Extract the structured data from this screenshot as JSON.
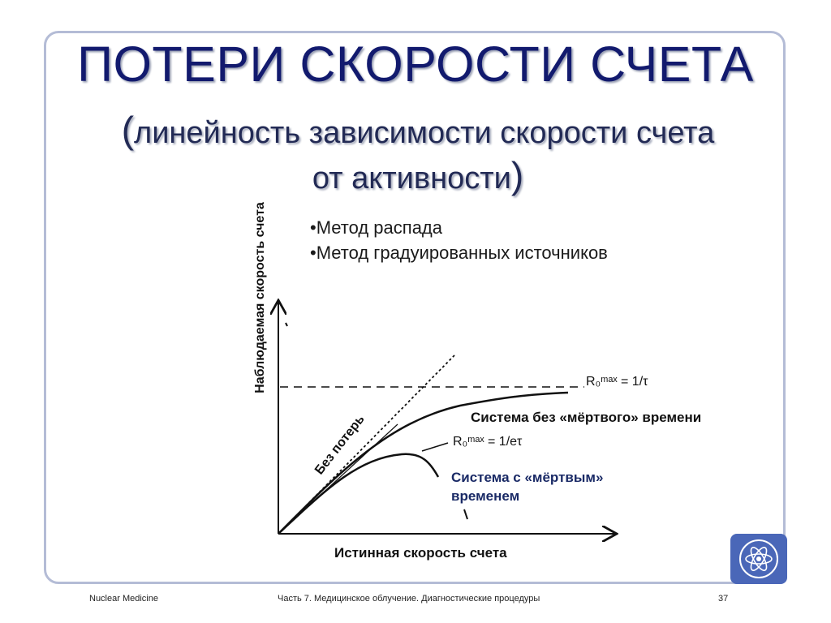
{
  "slide": {
    "title": "ПОТЕРИ СКОРОСТИ СЧЕТА",
    "subtitle_line1": "линейность зависимости скорости счета",
    "subtitle_line2": "от активности",
    "bullets": [
      "•Метод распада",
      "•Метод градуированных источников"
    ]
  },
  "figure": {
    "y_axis_label": "Наблюдаемая скорость счета",
    "x_axis_label": "Истинная скорость счета",
    "label_no_loss": "Без потерь",
    "label_no_dead_time": "Система без «мёртвого» времени",
    "label_dead_time_line1": "Система с «мёртвым»",
    "label_dead_time_line2": "временем",
    "formula_top": "R₀ᵐᵃˣ = 1/τ",
    "formula_mid": "R₀ᵐᵃˣ = 1/eτ"
  },
  "footer": {
    "left": "Nuclear Medicine",
    "center": "Часть 7. Медицинское облучение. Диагностические процедуры",
    "page": "37"
  },
  "colors": {
    "title": "#121a6e",
    "frame": "#b4bcd6",
    "logo": "#4a67b8"
  },
  "icons": [
    "iaea-logo-icon"
  ]
}
